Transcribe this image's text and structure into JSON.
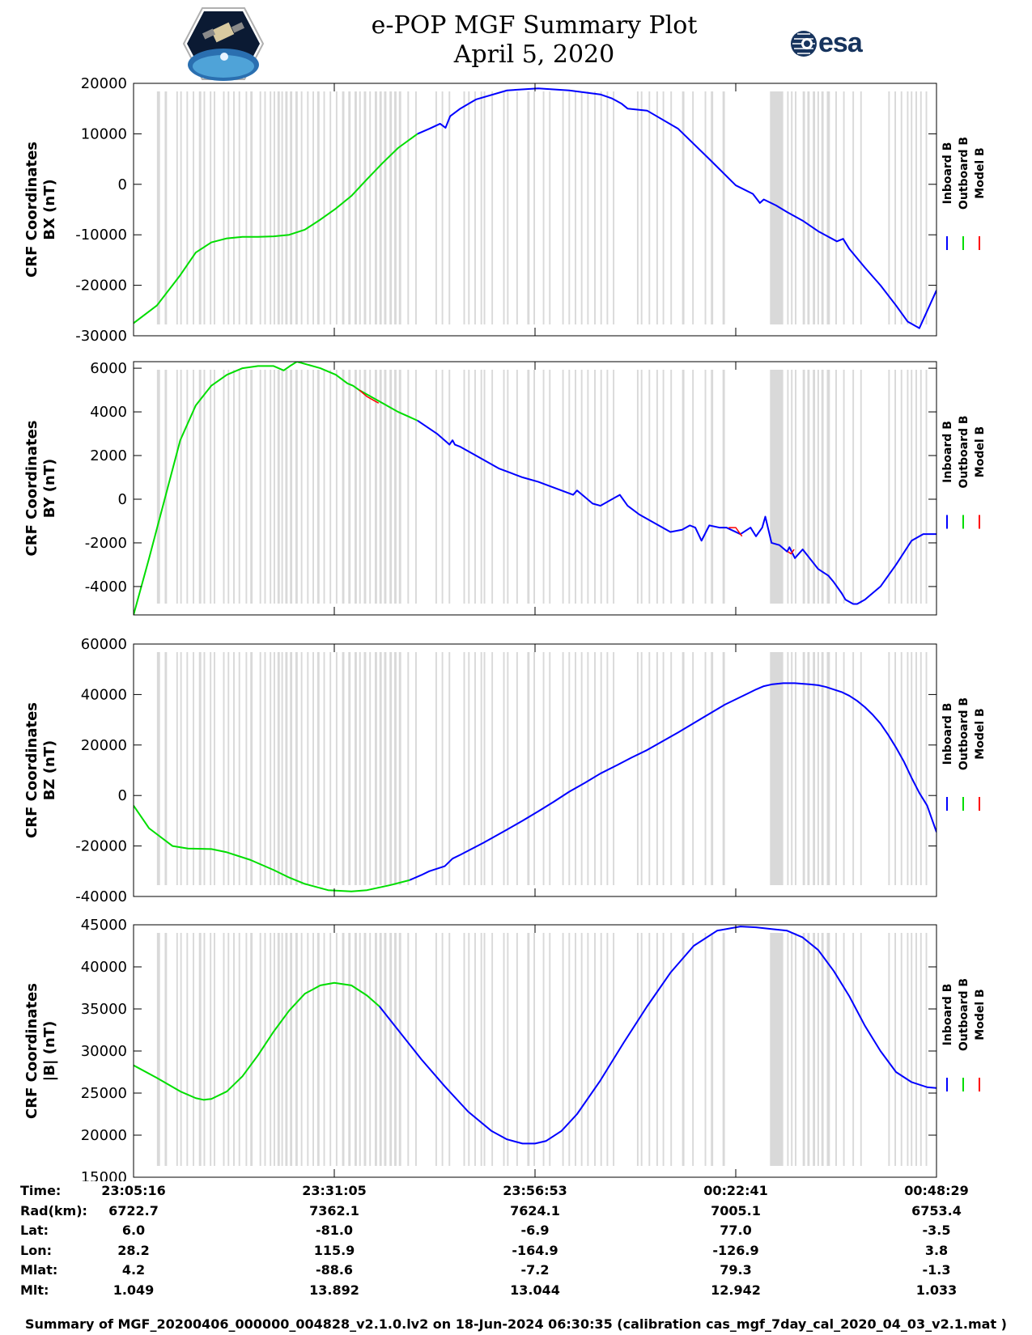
{
  "title": {
    "line1": "e-POP MGF Summary Plot",
    "line2": "April 5, 2020"
  },
  "logos": {
    "left": "cassiope-mission-icon",
    "right_text": "esa"
  },
  "colors": {
    "inboard": "#0000ff",
    "outboard": "#00dd00",
    "model": "#ff0000",
    "gap_band": "#d9d9d9",
    "esa_brand": "#17345e"
  },
  "legend": [
    "Inboard B",
    "Outboard B",
    "Model B"
  ],
  "gap_intervals_min": [
    [
      3.0,
      3.4
    ],
    [
      4.0,
      4.3
    ],
    [
      5.5,
      5.7
    ],
    [
      6.0,
      6.2
    ],
    [
      6.8,
      7.0
    ],
    [
      7.6,
      7.8
    ],
    [
      8.4,
      8.7
    ],
    [
      9.0,
      9.2
    ],
    [
      9.8,
      10.0
    ],
    [
      10.3,
      10.5
    ],
    [
      11.5,
      11.7
    ],
    [
      12.1,
      12.3
    ],
    [
      12.8,
      13.0
    ],
    [
      13.5,
      13.7
    ],
    [
      14.4,
      14.6
    ],
    [
      15.0,
      15.3
    ],
    [
      16.2,
      16.4
    ],
    [
      16.8,
      17.0
    ],
    [
      17.5,
      17.7
    ],
    [
      18.0,
      18.2
    ],
    [
      18.5,
      18.8
    ],
    [
      19.0,
      19.2
    ],
    [
      19.5,
      19.8
    ],
    [
      20.1,
      20.4
    ],
    [
      20.8,
      21.1
    ],
    [
      21.5,
      21.7
    ],
    [
      22.3,
      22.5
    ],
    [
      23.0,
      23.2
    ],
    [
      23.6,
      23.9
    ],
    [
      24.4,
      24.6
    ],
    [
      25.2,
      25.4
    ],
    [
      26.0,
      26.2
    ],
    [
      26.8,
      27.1
    ],
    [
      27.6,
      27.9
    ],
    [
      28.4,
      28.7
    ],
    [
      29.0,
      29.2
    ],
    [
      29.6,
      29.9
    ],
    [
      30.3,
      30.5
    ],
    [
      31.0,
      31.3
    ],
    [
      31.6,
      31.9
    ],
    [
      32.2,
      32.5
    ],
    [
      32.9,
      33.2
    ],
    [
      33.5,
      33.8
    ],
    [
      34.1,
      34.4
    ],
    [
      35.2,
      35.4
    ],
    [
      36.2,
      36.4
    ],
    [
      38.8,
      39.0
    ],
    [
      39.6,
      39.8
    ],
    [
      40.5,
      40.7
    ],
    [
      42.4,
      42.6
    ],
    [
      43.0,
      43.2
    ],
    [
      43.8,
      44.0
    ],
    [
      44.6,
      44.8
    ],
    [
      45.0,
      45.2
    ],
    [
      46.0,
      46.2
    ],
    [
      47.5,
      47.7
    ],
    [
      48.0,
      48.2
    ],
    [
      49.2,
      49.4
    ],
    [
      50.6,
      50.9
    ],
    [
      51.4,
      51.6
    ],
    [
      52.6,
      52.8
    ],
    [
      53.4,
      53.6
    ],
    [
      55.1,
      55.3
    ],
    [
      55.9,
      56.1
    ],
    [
      56.7,
      56.9
    ],
    [
      57.5,
      57.7
    ],
    [
      58.3,
      58.5
    ],
    [
      59.2,
      59.4
    ],
    [
      60.0,
      60.2
    ],
    [
      60.8,
      61.0
    ],
    [
      61.6,
      61.8
    ],
    [
      64.7,
      64.9
    ],
    [
      65.2,
      65.4
    ],
    [
      66.2,
      66.4
    ],
    [
      67.2,
      67.4
    ],
    [
      68.0,
      68.2
    ],
    [
      69.0,
      69.2
    ],
    [
      70.5,
      70.8
    ],
    [
      71.8,
      72.0
    ],
    [
      73.4,
      73.6
    ],
    [
      74.2,
      74.5
    ],
    [
      75.7,
      76.0
    ],
    [
      81.8,
      83.5
    ],
    [
      84.0,
      84.2
    ],
    [
      84.5,
      84.7
    ],
    [
      85.0,
      85.2
    ],
    [
      86.0,
      86.3
    ],
    [
      86.6,
      86.9
    ],
    [
      87.3,
      87.6
    ],
    [
      87.9,
      88.1
    ],
    [
      88.4,
      88.7
    ],
    [
      89.1,
      89.5
    ],
    [
      90.2,
      90.4
    ],
    [
      91.2,
      91.4
    ],
    [
      92.4,
      92.6
    ],
    [
      93.4,
      93.6
    ],
    [
      97.0,
      97.2
    ],
    [
      97.8,
      98.0
    ],
    [
      98.6,
      98.8
    ],
    [
      99.4,
      99.6
    ],
    [
      99.9,
      100.1
    ],
    [
      100.5,
      100.7
    ],
    [
      101.1,
      101.3
    ],
    [
      101.8,
      102.0
    ]
  ],
  "chart_data": [
    {
      "type": "line",
      "ylabel_line1": "CRF Coordinates",
      "ylabel_line2": "BX (nT)",
      "ylim": [
        -30000,
        20000
      ],
      "yticks": [
        -30000,
        -20000,
        -10000,
        0,
        10000,
        20000
      ],
      "xlim_min": [
        0,
        103.2
      ],
      "xticks_min": [
        0,
        25.8,
        51.6,
        77.4,
        103.2
      ],
      "outboard_end_min": 36.5,
      "series": [
        {
          "name": "Outboard B",
          "x_min": [
            0,
            3,
            6,
            8,
            10,
            12,
            14,
            16,
            18,
            20,
            22,
            24,
            26,
            28,
            30,
            32,
            34,
            36.5
          ],
          "values": [
            -27500,
            -24000,
            -18000,
            -13500,
            -11500,
            -10700,
            -10400,
            -10400,
            -10300,
            -10000,
            -9000,
            -7000,
            -4800,
            -2300,
            1000,
            4200,
            7200,
            10000
          ]
        },
        {
          "name": "Inboard B",
          "x_min": [
            36.5,
            38,
            39.4,
            40.1,
            40.7,
            42,
            44,
            48,
            52,
            56,
            60,
            61.5,
            62.7,
            63.5,
            66,
            70,
            74,
            77.4,
            79.6,
            80.5,
            81,
            82.6,
            84,
            86,
            88,
            90.4,
            91.2,
            92,
            94,
            96,
            98,
            99.5,
            101,
            103.2
          ],
          "values": [
            10000,
            11000,
            12000,
            11200,
            13500,
            15000,
            16800,
            18600,
            19000,
            18600,
            17800,
            17000,
            16000,
            15000,
            14600,
            11000,
            5000,
            -200,
            -1900,
            -3700,
            -3000,
            -4200,
            -5500,
            -7200,
            -9300,
            -11300,
            -10800,
            -12800,
            -16500,
            -20000,
            -24000,
            -27200,
            -28500,
            -21000
          ]
        }
      ]
    },
    {
      "type": "line",
      "ylabel_line1": "CRF Coordinates",
      "ylabel_line2": "BY (nT)",
      "ylim": [
        -5300,
        6300
      ],
      "yticks": [
        -4000,
        -2000,
        0,
        2000,
        4000,
        6000
      ],
      "xlim_min": [
        0,
        103.2
      ],
      "xticks_min": [
        0,
        25.8,
        51.6,
        77.4,
        103.2
      ],
      "outboard_end_min": 36.5,
      "series": [
        {
          "name": "Outboard B",
          "x_min": [
            0,
            2,
            4,
            6,
            8,
            10,
            12,
            14,
            16,
            18,
            19.3,
            20.1,
            21,
            22,
            24,
            26,
            27.5,
            28.2,
            29,
            30,
            32,
            34,
            36.5
          ],
          "values": [
            -5300,
            -2700,
            0,
            2700,
            4300,
            5200,
            5700,
            6000,
            6100,
            6100,
            5900,
            6100,
            6300,
            6200,
            6000,
            5700,
            5300,
            5200,
            5000,
            4800,
            4400,
            4000,
            3600
          ]
        },
        {
          "name": "Inboard B",
          "x_min": [
            36.5,
            39,
            40.3,
            40.6,
            41,
            41.3,
            42,
            44,
            45.5,
            47,
            48.5,
            50,
            52,
            55,
            56.5,
            57,
            58,
            59,
            60,
            62.5,
            63.5,
            65,
            66.5,
            69,
            70.5,
            71.5,
            72.2,
            73,
            74,
            75.3,
            76.2,
            76.5,
            78,
            79.3,
            80,
            80.8,
            81.2,
            82,
            83,
            84,
            84.3,
            85,
            86,
            88,
            89.3,
            90,
            91,
            91.5,
            92.5,
            93,
            94,
            96,
            98,
            100,
            101.5,
            103.2
          ],
          "values": [
            3600,
            3000,
            2600,
            2500,
            2700,
            2500,
            2400,
            2000,
            1700,
            1400,
            1200,
            1000,
            800,
            400,
            200,
            400,
            100,
            -200,
            -300,
            200,
            -300,
            -700,
            -1000,
            -1500,
            -1400,
            -1200,
            -1300,
            -1900,
            -1200,
            -1300,
            -1300,
            -1350,
            -1600,
            -1300,
            -1700,
            -1300,
            -800,
            -2000,
            -2100,
            -2400,
            -2200,
            -2700,
            -2300,
            -3200,
            -3500,
            -3800,
            -4300,
            -4600,
            -4800,
            -4800,
            -4600,
            -4000,
            -3000,
            -1900,
            -1600,
            -1600
          ]
        },
        {
          "name": "Model B",
          "x_min": [
            29,
            30,
            31,
            31.5,
            76.5,
            77.4,
            78.2,
            84.1,
            84.5,
            84.9
          ],
          "values": [
            5000,
            4700,
            4500,
            4400,
            -1300,
            -1300,
            -1700,
            -2400,
            -2500,
            -2300
          ]
        }
      ]
    },
    {
      "type": "line",
      "ylabel_line1": "CRF Coordinates",
      "ylabel_line2": "BZ (nT)",
      "ylim": [
        -40000,
        60000
      ],
      "yticks": [
        -40000,
        -20000,
        0,
        20000,
        40000,
        60000
      ],
      "xlim_min": [
        0,
        103.2
      ],
      "xticks_min": [
        0,
        25.8,
        51.6,
        77.4,
        103.2
      ],
      "outboard_end_min": 35.5,
      "series": [
        {
          "name": "Outboard B",
          "x_min": [
            0,
            2,
            5,
            7,
            10,
            12,
            15,
            18,
            20,
            22,
            25,
            28,
            30,
            33,
            35.5
          ],
          "values": [
            -4000,
            -13000,
            -20000,
            -21000,
            -21200,
            -22500,
            -25500,
            -29500,
            -32500,
            -35000,
            -37500,
            -38000,
            -37500,
            -35500,
            -33500
          ]
        },
        {
          "name": "Inboard B",
          "x_min": [
            35.5,
            37,
            38,
            40,
            41,
            42,
            45,
            48,
            50,
            52,
            54,
            56,
            58,
            60,
            62,
            64,
            66,
            68,
            70,
            73,
            76,
            79,
            80,
            81,
            82,
            83.5,
            85,
            87,
            88,
            89,
            90,
            91,
            92,
            93,
            94,
            95,
            96,
            97,
            98,
            99,
            100,
            101,
            102,
            103.2
          ],
          "values": [
            -33500,
            -31500,
            -30000,
            -28000,
            -25000,
            -23500,
            -18700,
            -13500,
            -10000,
            -6300,
            -2500,
            1500,
            5000,
            8700,
            11800,
            15000,
            18000,
            21500,
            25000,
            30500,
            36000,
            40500,
            42000,
            43300,
            44000,
            44500,
            44500,
            44000,
            43700,
            43000,
            42000,
            41000,
            39500,
            37500,
            35000,
            32000,
            28500,
            24000,
            19000,
            13500,
            7000,
            1000,
            -4000,
            -14500
          ]
        }
      ]
    },
    {
      "type": "line",
      "ylabel_line1": "CRF Coordinates",
      "ylabel_line2": "|B| (nT)",
      "ylim": [
        15000,
        45000
      ],
      "yticks": [
        15000,
        20000,
        25000,
        30000,
        35000,
        40000,
        45000
      ],
      "xlim_min": [
        0,
        103.2
      ],
      "xticks_min": [
        0,
        25.8,
        51.6,
        77.4,
        103.2
      ],
      "outboard_end_min": 31.6,
      "series": [
        {
          "name": "Outboard B",
          "x_min": [
            0,
            3,
            6,
            8,
            9,
            10,
            12,
            14,
            16,
            18,
            20,
            22,
            24,
            25.8,
            28,
            30,
            31.6
          ],
          "values": [
            28300,
            26800,
            25200,
            24400,
            24200,
            24300,
            25200,
            27000,
            29500,
            32300,
            34800,
            36800,
            37800,
            38100,
            37800,
            36600,
            35300
          ]
        },
        {
          "name": "Inboard B",
          "x_min": [
            31.6,
            34,
            37,
            40,
            43,
            46,
            48,
            50,
            51.6,
            53,
            55,
            57,
            60,
            63,
            66,
            69,
            72,
            75,
            78,
            80,
            82,
            84,
            86,
            88,
            90,
            92,
            94,
            96,
            98,
            100,
            102,
            103.2
          ],
          "values": [
            35300,
            32500,
            29000,
            25800,
            22800,
            20500,
            19500,
            19000,
            19000,
            19300,
            20500,
            22500,
            26500,
            31000,
            35300,
            39300,
            42500,
            44300,
            44800,
            44700,
            44500,
            44300,
            43500,
            42000,
            39500,
            36500,
            33000,
            30000,
            27500,
            26300,
            25700,
            25600
          ]
        }
      ]
    }
  ],
  "info_table": {
    "rows": [
      {
        "label": "Time:",
        "values": [
          "23:05:16",
          "23:31:05",
          "23:56:53",
          "00:22:41",
          "00:48:29"
        ]
      },
      {
        "label": "Rad(km):",
        "values": [
          "6722.7",
          "7362.1",
          "7624.1",
          "7005.1",
          "6753.4"
        ]
      },
      {
        "label": "Lat:",
        "values": [
          "6.0",
          "-81.0",
          "-6.9",
          "77.0",
          "-3.5"
        ]
      },
      {
        "label": "Lon:",
        "values": [
          "28.2",
          "115.9",
          "-164.9",
          "-126.9",
          "3.8"
        ]
      },
      {
        "label": "Mlat:",
        "values": [
          "4.2",
          "-88.6",
          "-7.2",
          "79.3",
          "-1.3"
        ]
      },
      {
        "label": "Mlt:",
        "values": [
          "1.049",
          "13.892",
          "13.044",
          "12.942",
          "1.033"
        ]
      }
    ]
  },
  "footer": "Summary of MGF_20200406_000000_004828_v2.1.0.lv2 on 18-Jun-2024 06:30:35 (calibration cas_mgf_7day_cal_2020_04_03_v2.1.mat )"
}
